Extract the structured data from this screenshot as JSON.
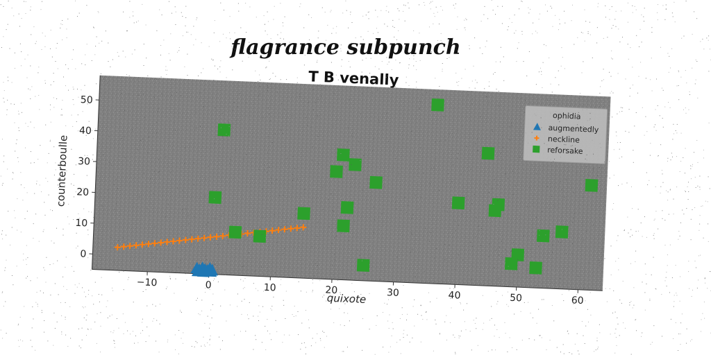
{
  "chart_data": {
    "type": "scatter",
    "suptitle": "flagrance subpunch",
    "title": "T B venally",
    "xlabel": "quixote",
    "ylabel": "counterboulle",
    "xlim": [
      -19,
      64
    ],
    "ylim": [
      -5,
      58
    ],
    "x_ticks": [
      -10,
      0,
      10,
      20,
      30,
      40,
      50,
      60
    ],
    "y_ticks": [
      0,
      10,
      20,
      30,
      40,
      50
    ],
    "grid": false,
    "background_color": "#808080",
    "legend": {
      "position": "top-right",
      "title": "ophidia",
      "entries": [
        "augmentedly",
        "neckline",
        "reforsake"
      ]
    },
    "series": [
      {
        "name": "augmentedly",
        "marker": "triangle",
        "color": "#1f77b4",
        "points": [
          [
            -2.0,
            -3.3
          ],
          [
            -1.6,
            -3.8
          ],
          [
            -1.1,
            -3.1
          ],
          [
            -0.7,
            -3.6
          ],
          [
            -0.3,
            -3.9
          ],
          [
            0.1,
            -3.2
          ],
          [
            0.5,
            -3.7
          ],
          [
            -1.8,
            -4.2
          ],
          [
            -0.9,
            -4.3
          ],
          [
            0.3,
            -4.1
          ]
        ]
      },
      {
        "name": "neckline",
        "marker": "plus",
        "color": "#ff7f0e",
        "points": [
          [
            -15,
            2.5
          ],
          [
            -14,
            2.8
          ],
          [
            -13,
            3.1
          ],
          [
            -12,
            3.4
          ],
          [
            -11,
            3.7
          ],
          [
            -10,
            4.0
          ],
          [
            -9,
            4.3
          ],
          [
            -8,
            4.6
          ],
          [
            -7,
            4.9
          ],
          [
            -6,
            5.2
          ],
          [
            -5,
            5.5
          ],
          [
            -4,
            5.8
          ],
          [
            -3,
            6.1
          ],
          [
            -2,
            6.4
          ],
          [
            -1,
            6.7
          ],
          [
            0,
            7.0
          ],
          [
            1,
            7.3
          ],
          [
            2,
            7.6
          ],
          [
            3,
            7.9
          ],
          [
            4,
            8.2
          ],
          [
            5,
            8.5
          ],
          [
            6,
            8.8
          ],
          [
            7,
            9.1
          ],
          [
            8,
            9.4
          ],
          [
            9,
            9.7
          ],
          [
            10,
            10.0
          ],
          [
            11,
            10.3
          ],
          [
            12,
            10.6
          ],
          [
            13,
            10.9
          ],
          [
            14,
            11.2
          ],
          [
            15,
            11.5
          ]
        ]
      },
      {
        "name": "reforsake",
        "marker": "square",
        "color": "#2ca02c",
        "points": [
          [
            1.5,
            42
          ],
          [
            0.5,
            20
          ],
          [
            4,
            9
          ],
          [
            8,
            8
          ],
          [
            15,
            16
          ],
          [
            20,
            30
          ],
          [
            21,
            35.5
          ],
          [
            23,
            32.5
          ],
          [
            26.5,
            27
          ],
          [
            22,
            18.5
          ],
          [
            21.5,
            12.5
          ],
          [
            25,
            0
          ],
          [
            36,
            53
          ],
          [
            40,
            21.5
          ],
          [
            44.5,
            38
          ],
          [
            46,
            19.5
          ],
          [
            46.5,
            21.5
          ],
          [
            49,
            2.5
          ],
          [
            50,
            5.5
          ],
          [
            53,
            1.5
          ],
          [
            54,
            12
          ],
          [
            57,
            13.5
          ],
          [
            61.5,
            29
          ]
        ]
      }
    ]
  }
}
